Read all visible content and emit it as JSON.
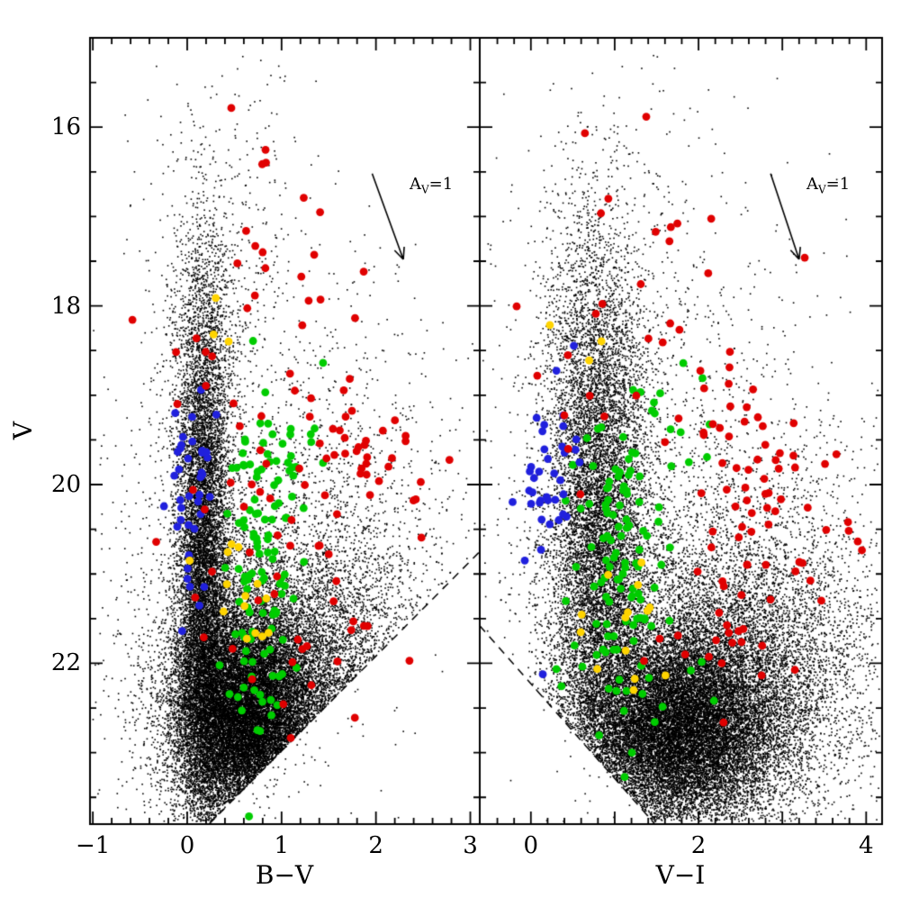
{
  "figure": {
    "kind": "two-panel color-magnitude diagram scatter figure",
    "background": "#ffffff"
  },
  "chart_data": {
    "type": "scatter",
    "title": "",
    "ylabel": "V",
    "ylim": [
      15.0,
      23.8
    ],
    "yticks": {
      "major": [
        16,
        18,
        20,
        22
      ],
      "labels": [
        "16",
        "18",
        "20",
        "22"
      ],
      "minor_step": 0.5
    },
    "arrow_label": {
      "pre": "A",
      "sub": "V",
      "post": "=1"
    },
    "colors": {
      "field": "#000000",
      "red": "#e00000",
      "green": "#00cc00",
      "blue": "#2020dd",
      "yellow": "#ffd400"
    },
    "seed": 42,
    "legend": "off",
    "grid": "off",
    "panels": [
      {
        "id": "left",
        "xlabel": "B−V",
        "xlim": [
          -1.03,
          3.1
        ],
        "xticks": {
          "major": [
            -1,
            0,
            1,
            2,
            3
          ],
          "labels": [
            "−1",
            "0",
            "1",
            "2",
            "3"
          ],
          "minor_step": 0.2
        },
        "extinction_vector": {
          "x1": 1.96,
          "v1": 16.52,
          "x2": 2.29,
          "v2": 17.48
        },
        "faint_limit": {
          "x1": 0.23,
          "v1": 23.8,
          "x2": 3.1,
          "v2": 20.75
        },
        "field_clusters": [
          {
            "n": 9000,
            "x": 0.17,
            "sx": 0.14,
            "v": 20.9,
            "sv": 1.5
          },
          {
            "n": 16000,
            "x": 0.62,
            "sx": 0.38,
            "v": 22.6,
            "sv": 0.6
          },
          {
            "n": 7000,
            "x": 1.1,
            "sx": 0.62,
            "v": 22.2,
            "sv": 0.8
          },
          {
            "n": 2500,
            "x": 0.9,
            "sx": 0.85,
            "v": 21.2,
            "sv": 1.7
          },
          {
            "n": 700,
            "x": 2.0,
            "sx": 0.6,
            "v": 21.2,
            "sv": 1.2
          },
          {
            "n": 300,
            "x": 0.45,
            "sx": 0.5,
            "v": 17.3,
            "sv": 1.2
          },
          {
            "n": 800,
            "x": 0.2,
            "sx": 0.22,
            "v": 18.5,
            "sv": 0.8
          }
        ],
        "samples": {
          "red": [
            {
              "n": 10,
              "x": 0.8,
              "sx": 0.35,
              "v": 16.8,
              "sv": 0.45
            },
            {
              "n": 14,
              "x": 1.25,
              "sx": 0.45,
              "v": 18.3,
              "sv": 0.65
            },
            {
              "n": 30,
              "x": 1.75,
              "sx": 0.35,
              "v": 19.7,
              "sv": 0.45
            },
            {
              "n": 6,
              "x": 2.6,
              "sx": 0.25,
              "v": 19.8,
              "sv": 0.3
            },
            {
              "n": 18,
              "x": 0.25,
              "sx": 0.35,
              "v": 19.6,
              "sv": 1.0
            },
            {
              "n": 16,
              "x": 1.1,
              "sx": 0.45,
              "v": 20.6,
              "sv": 0.6
            },
            {
              "n": 18,
              "x": 1.4,
              "sx": 0.5,
              "v": 21.8,
              "sv": 0.5
            }
          ],
          "green": [
            {
              "n": 100,
              "x": 0.8,
              "sx": 0.2,
              "v": 20.9,
              "sv": 0.85
            },
            {
              "n": 15,
              "x": 1.15,
              "sx": 0.3,
              "v": 19.6,
              "sv": 0.35
            },
            {
              "n": 8,
              "x": 0.75,
              "sx": 0.2,
              "v": 22.4,
              "sv": 0.3
            }
          ],
          "blue": [
            {
              "n": 38,
              "x": 0.03,
              "sx": 0.12,
              "v": 19.9,
              "sv": 0.65
            }
          ],
          "yellow": [
            {
              "n": 14,
              "x": 0.55,
              "sx": 0.18,
              "v": 21.3,
              "sv": 0.45
            },
            {
              "n": 3,
              "x": 0.45,
              "sx": 0.15,
              "v": 18.0,
              "sv": 0.35
            }
          ]
        }
      },
      {
        "id": "right",
        "xlabel": "V−I",
        "xlim": [
          -0.61,
          4.19
        ],
        "xticks": {
          "major": [
            0,
            1,
            2,
            3,
            4
          ],
          "labels": [
            "0",
            "",
            "2",
            "",
            "4"
          ],
          "minor_step": 0.2
        },
        "extinction_vector": {
          "x1": 2.86,
          "v1": 16.52,
          "x2": 3.2,
          "v2": 17.48
        },
        "faint_limit": {
          "x1": -0.61,
          "v1": 21.58,
          "x2": 1.48,
          "v2": 23.8
        },
        "field_clusters": [
          {
            "n": 9000,
            "x": 0.82,
            "sx": 0.3,
            "v": 20.6,
            "sv": 1.5
          },
          {
            "n": 16000,
            "x": 1.75,
            "sx": 0.6,
            "v": 22.75,
            "sv": 0.55
          },
          {
            "n": 7000,
            "x": 2.3,
            "sx": 0.8,
            "v": 22.1,
            "sv": 0.85
          },
          {
            "n": 2500,
            "x": 1.6,
            "sx": 1.05,
            "v": 21.2,
            "sv": 1.7
          },
          {
            "n": 700,
            "x": 3.3,
            "sx": 0.55,
            "v": 21.6,
            "sv": 1.1
          },
          {
            "n": 300,
            "x": 1.1,
            "sx": 0.8,
            "v": 17.3,
            "sv": 1.2
          },
          {
            "n": 800,
            "x": 0.7,
            "sx": 0.3,
            "v": 18.5,
            "sv": 0.8
          }
        ],
        "samples": {
          "red": [
            {
              "n": 10,
              "x": 1.6,
              "sx": 0.55,
              "v": 16.7,
              "sv": 0.45
            },
            {
              "n": 14,
              "x": 2.1,
              "sx": 0.6,
              "v": 18.4,
              "sv": 0.65
            },
            {
              "n": 40,
              "x": 2.55,
              "sx": 0.4,
              "v": 19.8,
              "sv": 0.55
            },
            {
              "n": 10,
              "x": 0.5,
              "sx": 0.3,
              "v": 18.8,
              "sv": 0.7
            },
            {
              "n": 16,
              "x": 3.0,
              "sx": 0.5,
              "v": 20.7,
              "sv": 0.6
            },
            {
              "n": 8,
              "x": 3.7,
              "sx": 0.3,
              "v": 20.3,
              "sv": 0.5
            },
            {
              "n": 18,
              "x": 1.9,
              "sx": 0.4,
              "v": 21.8,
              "sv": 0.5
            }
          ],
          "green": [
            {
              "n": 100,
              "x": 1.05,
              "sx": 0.28,
              "v": 20.7,
              "sv": 0.85
            },
            {
              "n": 15,
              "x": 1.4,
              "sx": 0.3,
              "v": 19.4,
              "sv": 0.4
            },
            {
              "n": 10,
              "x": 1.5,
              "sx": 0.35,
              "v": 22.3,
              "sv": 0.4
            }
          ],
          "blue": [
            {
              "n": 38,
              "x": 0.18,
              "sx": 0.22,
              "v": 19.9,
              "sv": 0.6
            }
          ],
          "yellow": [
            {
              "n": 14,
              "x": 1.25,
              "sx": 0.3,
              "v": 21.4,
              "sv": 0.5
            },
            {
              "n": 3,
              "x": 0.55,
              "sx": 0.15,
              "v": 18.1,
              "sv": 0.3
            }
          ]
        }
      }
    ]
  }
}
